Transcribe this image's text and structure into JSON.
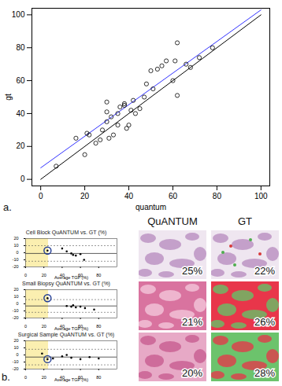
{
  "chart_data": [
    {
      "type": "scatter",
      "x_label": "quantum",
      "y_label": "gt",
      "xlim": [
        -4,
        104
      ],
      "ylim": [
        -4,
        104
      ],
      "xticks": [
        0,
        20,
        40,
        60,
        80,
        100
      ],
      "yticks": [
        0,
        20,
        40,
        60,
        80,
        100
      ],
      "color": "#000000",
      "marker": "circle",
      "x": [
        7,
        16,
        20,
        21,
        22,
        25,
        27,
        28,
        30,
        30,
        30,
        31,
        32,
        33,
        35,
        35,
        36,
        38,
        38,
        39,
        40,
        41,
        42,
        43,
        45,
        47,
        48,
        50,
        51,
        53,
        55,
        57,
        60,
        61,
        62,
        62,
        66,
        68,
        72,
        78
      ],
      "y": [
        8,
        25,
        15,
        28,
        27,
        22,
        24,
        30,
        35,
        41,
        47,
        25,
        38,
        27,
        40,
        33,
        44,
        45,
        46,
        31,
        33,
        42,
        48,
        40,
        43,
        50,
        58,
        66,
        55,
        67,
        69,
        72,
        60,
        72,
        83,
        51,
        70,
        68,
        74,
        80
      ],
      "lines": [
        {
          "color": "#000000",
          "line_style": "solid",
          "x": [
            0,
            100
          ],
          "y": [
            0,
            100
          ]
        },
        {
          "color": "#3333ff",
          "line_style": "solid",
          "x": [
            0,
            100
          ],
          "y": [
            7,
            103
          ]
        }
      ]
    },
    {
      "type": "scatter",
      "title": "Cell Block QuANTUM vs. GT (%)",
      "x_label": "Average TGP (%)",
      "xlim": [
        0,
        100
      ],
      "ylim": [
        -20,
        20
      ],
      "xticks": [
        0,
        20,
        40,
        60,
        80
      ],
      "yticks": [
        -20,
        -10,
        0,
        10,
        20
      ],
      "shaded_range": [
        0,
        25
      ],
      "mean": -1,
      "limits": [
        -12,
        10
      ],
      "highlighted": 0,
      "x": [
        24,
        40,
        45,
        50,
        52,
        55,
        60,
        64
      ],
      "y": [
        3,
        6,
        2,
        -1,
        -3,
        -4,
        -2,
        -10
      ]
    },
    {
      "type": "scatter",
      "title": "Small Biopsy QuANTUM vs. GT (%)",
      "x_label": "Average TGP (%)",
      "xlim": [
        0,
        100
      ],
      "ylim": [
        -20,
        20
      ],
      "xticks": [
        0,
        20,
        40,
        60,
        80
      ],
      "yticks": [
        -20,
        -10,
        0,
        10,
        20
      ],
      "shaded_range": [
        0,
        25
      ],
      "mean": -3,
      "limits": [
        -12,
        6
      ],
      "highlighted": 0,
      "x": [
        24,
        45,
        50,
        52,
        55,
        60,
        65,
        75
      ],
      "y": [
        8,
        -3,
        -4,
        -2,
        -5,
        -4,
        -6,
        -8
      ]
    },
    {
      "type": "scatter",
      "title": "Surgical Sample QuANTUM vs. GT (%)",
      "x_label": "Average TGP (%)",
      "xlim": [
        0,
        100
      ],
      "ylim": [
        -20,
        20
      ],
      "xticks": [
        0,
        20,
        40,
        60,
        80
      ],
      "yticks": [
        -20,
        -10,
        0,
        10,
        20
      ],
      "shaded_range": [
        0,
        25
      ],
      "mean": -3,
      "limits": [
        -14,
        8
      ],
      "highlighted": 0,
      "x": [
        24,
        18,
        30,
        40,
        45,
        50,
        60,
        70,
        80
      ],
      "y": [
        -6,
        2,
        -5,
        -2,
        0,
        -4,
        -6,
        -3,
        -5
      ]
    }
  ],
  "panel_labels": [
    "a.",
    "b."
  ],
  "images": {
    "columns": [
      "QuANTUM",
      "GT"
    ],
    "rows": [
      {
        "values": [
          25,
          22
        ],
        "value_labels": [
          "25%",
          "22%"
        ]
      },
      {
        "values": [
          21,
          26
        ],
        "value_labels": [
          "21%",
          "26%"
        ]
      },
      {
        "values": [
          20,
          28
        ],
        "value_labels": [
          "20%",
          "28%"
        ]
      }
    ]
  }
}
